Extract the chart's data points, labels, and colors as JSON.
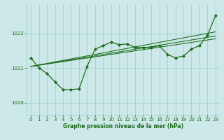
{
  "background_color": "#cce8e8",
  "grid_color": "#99cccc",
  "line_color": "#1a6b1a",
  "xlabel": "Graphe pression niveau de la mer (hPa)",
  "xlim": [
    -0.5,
    23.5
  ],
  "ylim": [
    1019.65,
    1022.85
  ],
  "yticks": [
    1020,
    1021,
    1022
  ],
  "xticks": [
    0,
    1,
    2,
    3,
    4,
    5,
    6,
    7,
    8,
    9,
    10,
    11,
    12,
    13,
    14,
    15,
    16,
    17,
    18,
    19,
    20,
    21,
    22,
    23
  ],
  "main_y": [
    1021.3,
    1021.0,
    1020.85,
    1020.6,
    1020.38,
    1020.38,
    1020.4,
    1021.05,
    1021.55,
    1021.65,
    1021.75,
    1021.68,
    1021.7,
    1021.6,
    1021.6,
    1021.6,
    1021.65,
    1021.4,
    1021.3,
    1021.35,
    1021.55,
    1021.65,
    1021.95,
    1022.52
  ],
  "ref_lines": [
    {
      "x0": 0,
      "y0": 1021.05,
      "x1": 23,
      "y1": 1021.85
    },
    {
      "x0": 0,
      "y0": 1021.05,
      "x1": 23,
      "y1": 1021.93
    },
    {
      "x0": 0,
      "y0": 1021.05,
      "x1": 23,
      "y1": 1022.05
    }
  ]
}
